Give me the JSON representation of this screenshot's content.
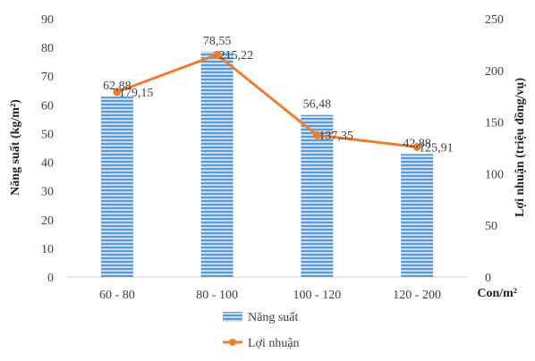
{
  "chart_data": {
    "type": "bar+line",
    "categories": [
      "60 - 80",
      "80 - 100",
      "100 - 120",
      "120 - 200"
    ],
    "series": [
      {
        "name": "Năng suất",
        "kind": "bar",
        "axis": "left",
        "values": [
          62.88,
          78.55,
          56.48,
          42.88
        ],
        "labels": [
          "62,88",
          "78,55",
          "56,48",
          "42,88"
        ],
        "color": "#5B9BD5"
      },
      {
        "name": "Lợi nhuận",
        "kind": "line",
        "axis": "right",
        "values": [
          179.15,
          215.22,
          137.35,
          125.91
        ],
        "labels": [
          "179,15",
          "215,22",
          "137,35",
          "125,91"
        ],
        "color": "#ED7D31"
      }
    ],
    "ylabel_left": "Năng suất (kg/m²)",
    "ylabel_right": "Lợi nhuận (triệu đồng/vụ)",
    "xlabel": "Con/m²",
    "ylim_left": [
      0,
      90
    ],
    "yticks_left": [
      0,
      10,
      20,
      30,
      40,
      50,
      60,
      70,
      80,
      90
    ],
    "ylim_right": [
      0,
      250
    ],
    "yticks_right": [
      0,
      50,
      100,
      150,
      200,
      250
    ],
    "grid": false,
    "legend_position": "bottom"
  }
}
